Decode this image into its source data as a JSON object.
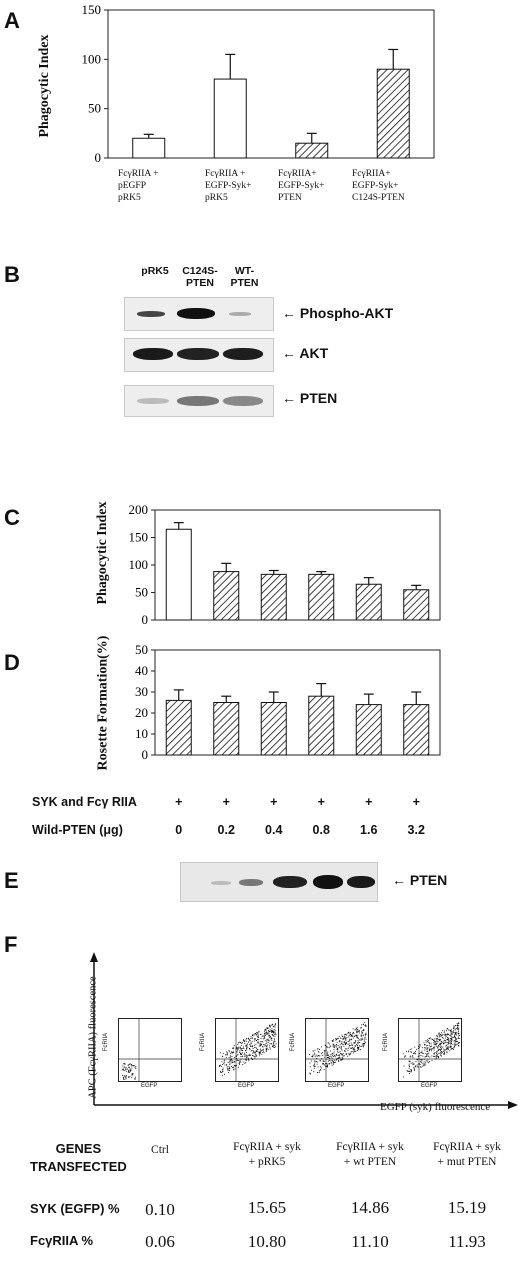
{
  "panels": {
    "A": "A",
    "B": "B",
    "C": "C",
    "D": "D",
    "E": "E",
    "F": "F"
  },
  "chart_data": [
    {
      "panel": "A",
      "type": "bar",
      "ylabel": "Phagocytic Index",
      "ylim": [
        0,
        150
      ],
      "yticks": [
        "0",
        "50",
        "100",
        "150"
      ],
      "categories": [
        [
          "FcγRIIA +",
          "pEGFP",
          "pRK5"
        ],
        [
          "FcγRIIA +",
          "EGFP-Syk+",
          "pRK5"
        ],
        [
          "FcγRIIA+",
          "EGFP-Syk+",
          "PTEN"
        ],
        [
          "FcγRIIA+",
          "EGFP-Syk+",
          "C124S-PTEN"
        ]
      ],
      "values": [
        20,
        80,
        15,
        90
      ],
      "errors": [
        4,
        25,
        10,
        20
      ],
      "fill": [
        "white",
        "white",
        "hatched",
        "hatched"
      ]
    },
    {
      "panel": "C",
      "type": "bar",
      "ylabel": "Phagocytic Index",
      "ylim": [
        0,
        200
      ],
      "yticks": [
        "0",
        "50",
        "100",
        "150",
        "200"
      ],
      "values": [
        165,
        88,
        83,
        83,
        65,
        55
      ],
      "errors": [
        12,
        15,
        7,
        5,
        12,
        8
      ],
      "fill": [
        "white",
        "hatched",
        "hatched",
        "hatched",
        "hatched",
        "hatched"
      ]
    },
    {
      "panel": "D",
      "type": "bar",
      "ylabel": "Rosette Formation(%)",
      "ylim": [
        0,
        50
      ],
      "yticks": [
        "0",
        "10",
        "20",
        "30",
        "40",
        "50"
      ],
      "values": [
        26,
        25,
        25,
        28,
        24,
        24
      ],
      "errors": [
        5,
        3,
        5,
        6,
        5,
        6
      ],
      "fill": [
        "hatched",
        "hatched",
        "hatched",
        "hatched",
        "hatched",
        "hatched"
      ]
    }
  ],
  "blotB": {
    "lanes": [
      "pRK5",
      "C124S-\nPTEN",
      "WT-\nPTEN"
    ],
    "rows": [
      "← Phospho-AKT",
      "← AKT",
      "← PTEN"
    ]
  },
  "conditions": {
    "row1_label": "SYK and Fcγ RIIA",
    "row1_values": [
      "+",
      "+",
      "+",
      "+",
      "+",
      "+"
    ],
    "row2_label": "Wild-PTEN (μg)",
    "row2_values": [
      "0",
      "0.2",
      "0.4",
      "0.8",
      "1.6",
      "3.2"
    ]
  },
  "blotE": {
    "label": "← PTEN"
  },
  "flow": {
    "y_axis": "APC (FcγRIIA) fluorescence",
    "x_axis": "EGFP (syk) fluorescence",
    "plot_y": "FcRIIA",
    "plot_x": "EGFP"
  },
  "table": {
    "row_head": "GENES\nTRANSFECTED",
    "columns": [
      "Ctrl",
      "FcγRIIA + syk\n+ pRK5",
      "FcγRIIA + syk\n+ wt PTEN",
      "FcγRIIA + syk\n+ mut PTEN"
    ],
    "rows": [
      {
        "label": "SYK (EGFP) %",
        "values": [
          "0.10",
          "15.65",
          "14.86",
          "15.19"
        ]
      },
      {
        "label": "FcγRIIA %",
        "values": [
          "0.06",
          "10.80",
          "11.10",
          "11.93"
        ]
      }
    ]
  }
}
